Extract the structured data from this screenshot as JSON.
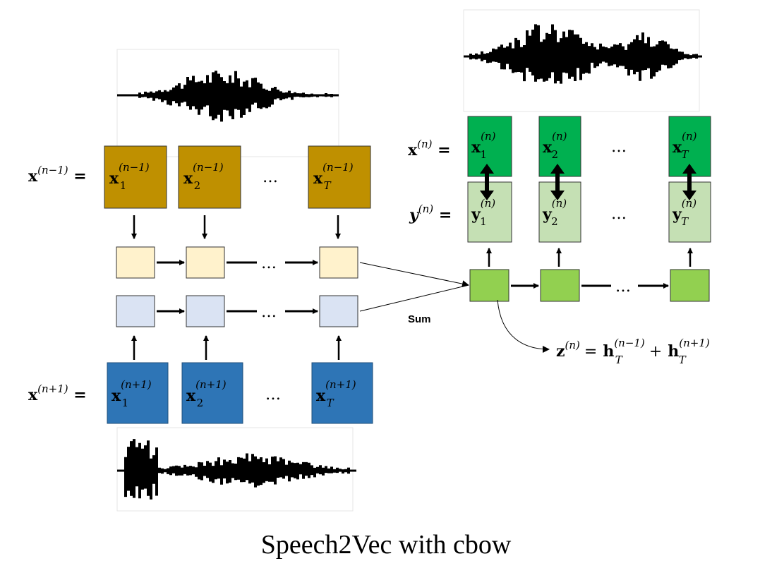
{
  "caption": "Speech2Vec with cbow",
  "sum_label": "Sum",
  "ellipsis": "…",
  "rows": {
    "prev": {
      "lhs_base": "x",
      "lhs_sup": "(n−1)",
      "cell_base": "x",
      "cell_sup": "(n−1)",
      "subs": [
        "1",
        "2",
        "T"
      ],
      "color": "#bf9000"
    },
    "next": {
      "lhs_base": "x",
      "lhs_sup": "(n+1)",
      "cell_base": "x",
      "cell_sup": "(n+1)",
      "subs": [
        "1",
        "2",
        "T"
      ],
      "color": "#2e75b6"
    },
    "target": {
      "lhs_base": "x",
      "lhs_sup": "(n)",
      "cell_base": "x",
      "cell_sup": "(n)",
      "subs": [
        "1",
        "2",
        "T"
      ],
      "color": "#00b050"
    },
    "output": {
      "lhs_base": "y",
      "lhs_sup": "(n)",
      "cell_base": "y",
      "cell_sup": "(n)",
      "subs": [
        "1",
        "2",
        "T"
      ],
      "color": "#c5e0b4"
    }
  },
  "encoder_colors": {
    "forward": "#fff2cc",
    "backward": "#dae3f3"
  },
  "decoder_color": "#92d050",
  "equation": {
    "z": "z",
    "z_sup": "(n)",
    "h1": "h",
    "h1_sup": "(n−1)",
    "h1_sub": "T",
    "plus": "+",
    "h2": "h",
    "h2_sup": "(n+1)",
    "h2_sub": "T",
    "equals": "="
  }
}
